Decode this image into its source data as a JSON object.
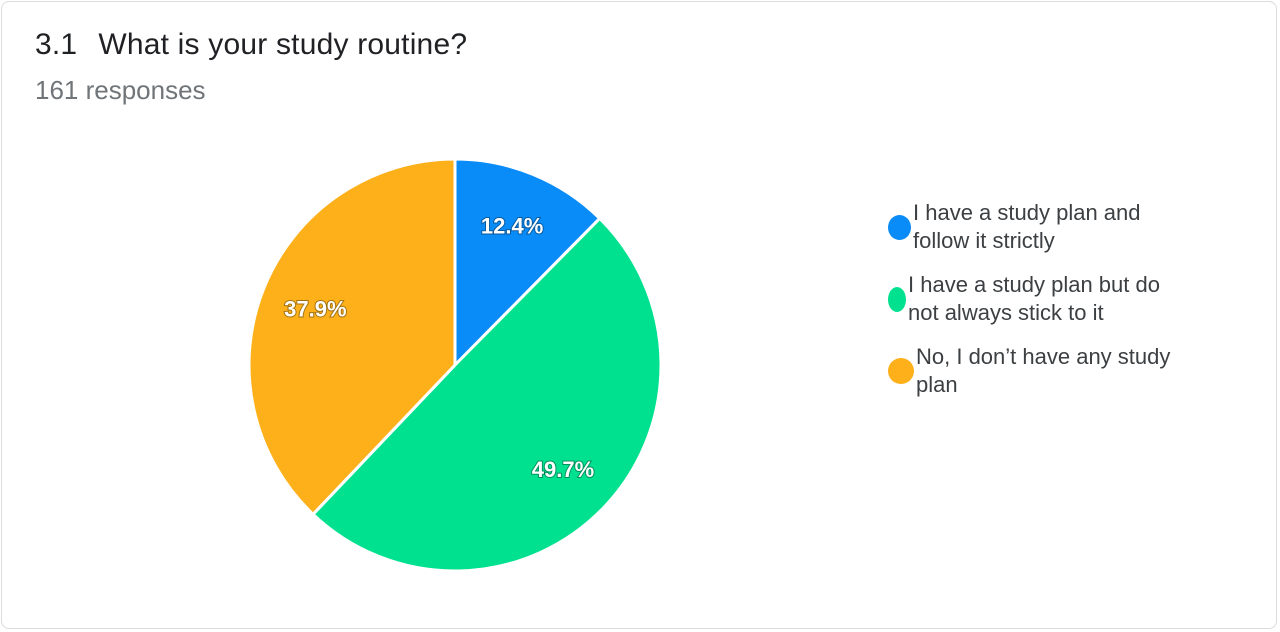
{
  "header": {
    "question_number": "3.1",
    "question_text": "What is your study routine?",
    "responses": "161 responses"
  },
  "colors": {
    "blue": "#0a8cf8",
    "green": "#00e190",
    "orange": "#fdb01a"
  },
  "chart_data": {
    "type": "pie",
    "title": "What is your study routine?",
    "legend_position": "right",
    "slices": [
      {
        "name": "I have a study plan and follow it strictly",
        "value": 12.4,
        "label": "12.4%",
        "color": "#0a8cf8"
      },
      {
        "name": "I have a study plan but do not always stick to it",
        "value": 49.7,
        "label": "49.7%",
        "color": "#00e190"
      },
      {
        "name": "No, I don’t have any study plan",
        "value": 37.9,
        "label": "37.9%",
        "color": "#fdb01a"
      }
    ]
  }
}
